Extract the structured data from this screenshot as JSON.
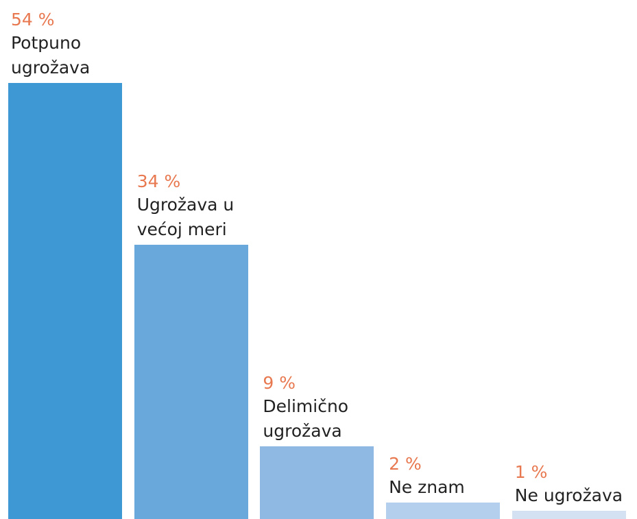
{
  "chart_data": {
    "type": "bar",
    "categories": [
      "Potpuno ugrožava",
      "Ugrožava u većoj meri",
      "Delimično ugrožava",
      "Ne znam",
      "Ne ugrožava"
    ],
    "values": [
      54,
      34,
      9,
      2,
      1
    ],
    "value_labels": [
      "54 %",
      "34 %",
      "9 %",
      "2 %",
      "1 %"
    ],
    "colors": [
      "#3e98d4",
      "#69a8db",
      "#8fb9e2",
      "#b4cfed",
      "#d3e1f3"
    ]
  }
}
